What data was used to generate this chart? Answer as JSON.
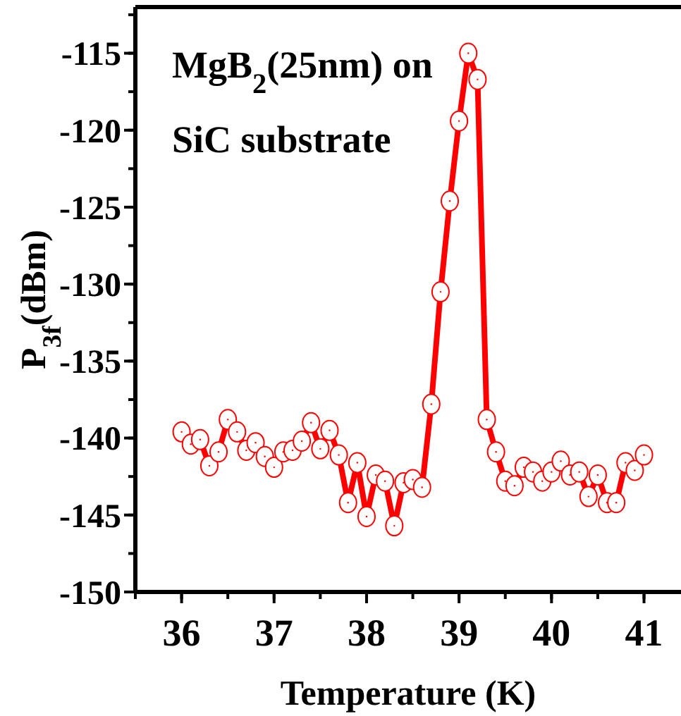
{
  "chart_data": {
    "type": "line",
    "xlabel": "Temperature (K)",
    "ylabel": "P$_{3f}$(dBm)",
    "annotations": [
      "MgB$_{2}$(25nm) on",
      "SiC substrate"
    ],
    "x": [
      36.0,
      36.1,
      36.2,
      36.3,
      36.4,
      36.5,
      36.6,
      36.7,
      36.8,
      36.9,
      37.0,
      37.1,
      37.2,
      37.3,
      37.4,
      37.5,
      37.6,
      37.7,
      37.8,
      37.9,
      38.0,
      38.1,
      38.2,
      38.3,
      38.4,
      38.5,
      38.6,
      38.7,
      38.8,
      38.9,
      39.0,
      39.1,
      39.2,
      39.3,
      39.4,
      39.5,
      39.6,
      39.7,
      39.8,
      39.9,
      40.0,
      40.1,
      40.2,
      40.3,
      40.4,
      40.5,
      40.6,
      40.7,
      40.8,
      40.9,
      41.0
    ],
    "series": [
      {
        "color": "#ff0000",
        "values": [
          -139.6,
          -140.4,
          -140.1,
          -141.8,
          -140.9,
          -138.8,
          -139.6,
          -140.8,
          -140.3,
          -141.2,
          -141.9,
          -140.9,
          -140.8,
          -140.2,
          -139.0,
          -140.7,
          -139.5,
          -141.1,
          -144.2,
          -141.6,
          -145.1,
          -142.4,
          -142.8,
          -145.7,
          -142.9,
          -142.7,
          -143.2,
          -137.8,
          -130.5,
          -124.6,
          -119.4,
          -115.0,
          -116.7,
          -138.8,
          -140.9,
          -142.8,
          -143.1,
          -141.9,
          -142.2,
          -142.8,
          -142.2,
          -141.5,
          -142.4,
          -142.2,
          -143.8,
          -142.4,
          -144.2,
          -144.2,
          -141.6,
          -142.1,
          -141.1
        ]
      }
    ],
    "xlim": [
      35.5,
      41.4
    ],
    "xticks": [
      36,
      37,
      38,
      39,
      40,
      41
    ],
    "ylim": [
      -150,
      -112
    ],
    "yticks": [
      -150,
      -145,
      -140,
      -135,
      -130,
      -125,
      -120,
      -115
    ],
    "marker": "circle",
    "line_style": "solid"
  }
}
